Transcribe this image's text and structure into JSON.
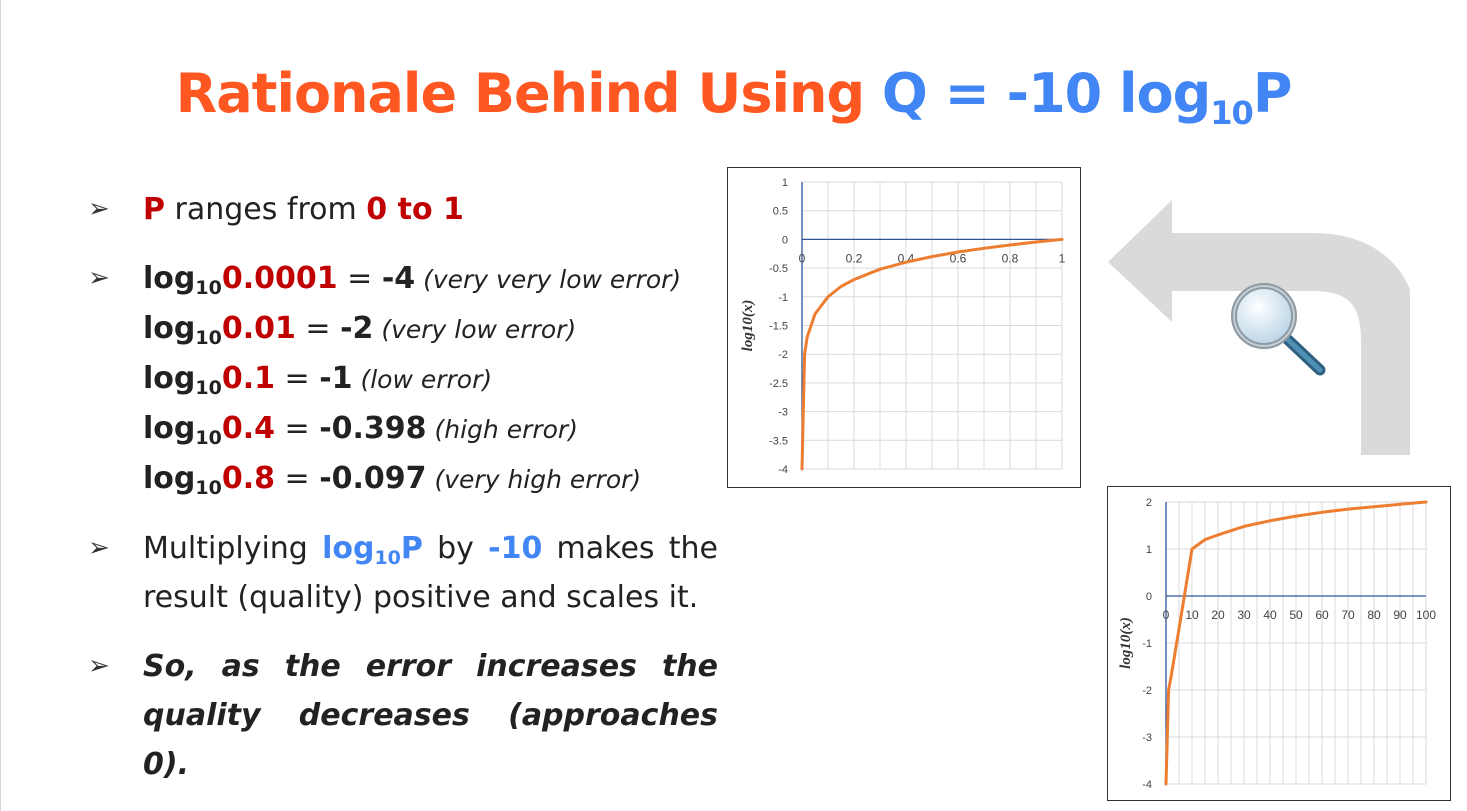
{
  "title": {
    "prefix": "Rationale Behind Using ",
    "formula_main": "Q = -10 log",
    "formula_sub": "10",
    "formula_end": "P"
  },
  "bullets": {
    "b1": {
      "var": "P",
      "text": " ranges from ",
      "range": "0 to 1"
    },
    "logs": [
      {
        "base": "log",
        "sub": "10",
        "arg": "0.0001",
        "eq": " = ",
        "result": "-4",
        "note": " (very very low error)"
      },
      {
        "base": "log",
        "sub": "10",
        "arg": "0.01",
        "eq": " = ",
        "result": "-2",
        "note": " (very low error)"
      },
      {
        "base": "log",
        "sub": "10",
        "arg": "0.1",
        "eq": " = ",
        "result": "-1",
        "note": " (low error)"
      },
      {
        "base": "log",
        "sub": "10",
        "arg": "0.4",
        "eq": " = ",
        "result": "-0.398",
        "note": " (high error)"
      },
      {
        "base": "log",
        "sub": "10",
        "arg": "0.8",
        "eq": " = ",
        "result": "-0.097",
        "note": " (very high error)"
      }
    ],
    "b3": {
      "a": "Multiplying ",
      "log": "log",
      "sub": "10",
      "p": "P",
      "b": " by ",
      "m": "-10",
      "c": " makes the result (quality) positive and scales it."
    },
    "b4": "So, as the error increases the quality decreases (approaches 0)."
  },
  "colors": {
    "title_orange": "#ff5722",
    "title_blue": "#4285f4",
    "accent_red": "#c00000",
    "curve": "#ed7d31",
    "axis": "#2f5597",
    "grid": "#d9d9d9"
  },
  "icons": [
    "bullet-arrow-icon",
    "curved-arrow-icon",
    "magnifier-icon"
  ],
  "chart_data": [
    {
      "type": "line",
      "ylabel": "log10(x)",
      "xlim": [
        0,
        1
      ],
      "ylim": [
        -4,
        1
      ],
      "x_ticks": [
        "0",
        "0.2",
        "0.4",
        "0.6",
        "0.8",
        "1"
      ],
      "y_ticks": [
        "1",
        "0.5",
        "0",
        "-0.5",
        "-1",
        "-1.5",
        "-2",
        "-2.5",
        "-3",
        "-3.5",
        "-4"
      ],
      "x": [
        0.0001,
        0.01,
        0.02,
        0.05,
        0.1,
        0.15,
        0.2,
        0.3,
        0.4,
        0.5,
        0.6,
        0.7,
        0.8,
        0.9,
        1
      ],
      "y": [
        -4,
        -2,
        -1.7,
        -1.3,
        -1,
        -0.82,
        -0.7,
        -0.52,
        -0.398,
        -0.3,
        -0.22,
        -0.155,
        -0.097,
        -0.046,
        0
      ]
    },
    {
      "type": "line",
      "ylabel": "log10(x)",
      "xlim": [
        0,
        100
      ],
      "ylim": [
        -4,
        2
      ],
      "x_ticks": [
        "0",
        "10",
        "20",
        "30",
        "40",
        "50",
        "60",
        "70",
        "80",
        "90",
        "100"
      ],
      "y_ticks": [
        "2",
        "1",
        "0",
        "-1",
        "-2",
        "-3",
        "-4"
      ],
      "x": [
        0.0001,
        1,
        2,
        5,
        10,
        15,
        20,
        30,
        40,
        50,
        60,
        70,
        80,
        90,
        100
      ],
      "y": [
        -4,
        -2,
        -1.7,
        -0.7,
        1,
        1.2,
        1.3,
        1.48,
        1.6,
        1.7,
        1.78,
        1.85,
        1.9,
        1.95,
        2
      ]
    }
  ]
}
